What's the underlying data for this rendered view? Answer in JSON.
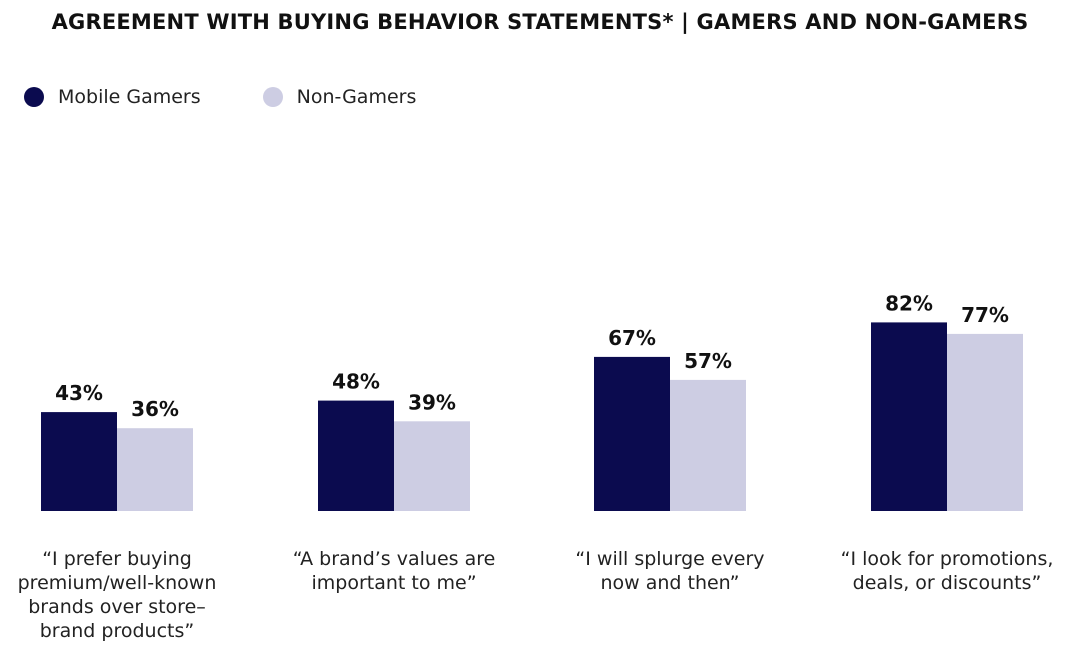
{
  "chart_data": {
    "type": "bar",
    "title": "AGREEMENT WITH BUYING BEHAVIOR STATEMENTS*  | GAMERS AND NON-GAMERS",
    "legend_position": "top-left",
    "grid": false,
    "value_suffix": "%",
    "ylim": [
      0,
      100
    ],
    "categories": [
      [
        "“I prefer buying",
        "premium/well-known",
        "brands over store–",
        "brand products”"
      ],
      [
        "“A brand’s values are",
        "important to me”"
      ],
      [
        "“I will splurge every",
        "now and then”"
      ],
      [
        "“I look for promotions,",
        "deals, or discounts”"
      ]
    ],
    "series": [
      {
        "name": "Mobile Gamers",
        "color": "#0b0b4f",
        "values": [
          43,
          48,
          67,
          82
        ]
      },
      {
        "name": "Non-Gamers",
        "color": "#cdcde3",
        "values": [
          36,
          39,
          57,
          77
        ]
      }
    ]
  }
}
